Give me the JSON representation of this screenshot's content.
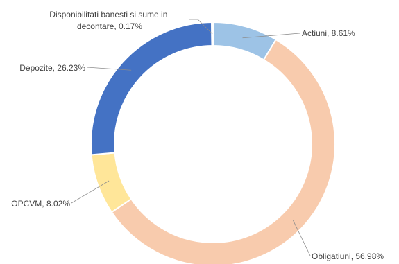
{
  "chart_data": {
    "type": "pie",
    "variant": "doughnut",
    "title": "",
    "legend": "none",
    "slices": [
      {
        "label": "Actiuni, 8.61%",
        "name": "Actiuni",
        "value": 8.61,
        "color": "#9dc3e6"
      },
      {
        "label": "Obligatiuni, 56.98%",
        "name": "Obligatiuni",
        "value": 56.98,
        "color": "#f8cbad"
      },
      {
        "label": "OPCVM, 8.02%",
        "name": "OPCVM",
        "value": 8.02,
        "color": "#ffe699"
      },
      {
        "label": "Depozite, 26.23%",
        "name": "Depozite",
        "value": 26.23,
        "color": "#4472c4"
      },
      {
        "label_lines": [
          "Disponibilitati banesti si sume in",
          "decontare, 0.17%"
        ],
        "name": "Disponibilitati banesti si sume in decontare",
        "value": 0.17,
        "color": "#a5a5a5"
      }
    ]
  }
}
